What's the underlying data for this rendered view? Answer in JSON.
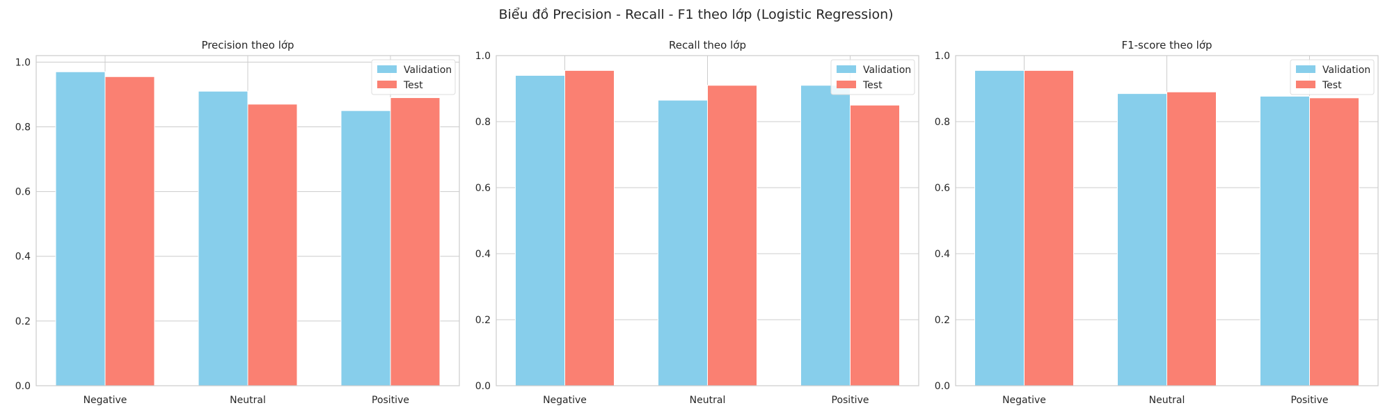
{
  "suptitle": "Biểu đồ Precision - Recall - F1 theo lớp (Logistic Regression)",
  "colors": {
    "validation": "#87ceeb",
    "test": "#fa8072",
    "grid": "#cccccc",
    "axis": "#cccccc"
  },
  "chart_data": [
    {
      "type": "bar",
      "title": "Precision theo lớp",
      "categories": [
        "Negative",
        "Neutral",
        "Positive"
      ],
      "series": [
        {
          "name": "Validation",
          "values": [
            0.97,
            0.91,
            0.85
          ]
        },
        {
          "name": "Test",
          "values": [
            0.955,
            0.87,
            0.89
          ]
        }
      ],
      "ylim": [
        0,
        1.02
      ],
      "yticks": [
        "0.0",
        "0.2",
        "0.4",
        "0.6",
        "0.8",
        "1.0"
      ],
      "legend": "top-right",
      "grid": true
    },
    {
      "type": "bar",
      "title": "Recall theo lớp",
      "categories": [
        "Negative",
        "Neutral",
        "Positive"
      ],
      "series": [
        {
          "name": "Validation",
          "values": [
            0.94,
            0.865,
            0.91
          ]
        },
        {
          "name": "Test",
          "values": [
            0.955,
            0.91,
            0.85
          ]
        }
      ],
      "ylim": [
        0,
        1.0
      ],
      "yticks": [
        "0.0",
        "0.2",
        "0.4",
        "0.6",
        "0.8",
        "1.0"
      ],
      "legend": "top-right",
      "grid": true
    },
    {
      "type": "bar",
      "title": "F1-score theo lớp",
      "categories": [
        "Negative",
        "Neutral",
        "Positive"
      ],
      "series": [
        {
          "name": "Validation",
          "values": [
            0.955,
            0.885,
            0.877
          ]
        },
        {
          "name": "Test",
          "values": [
            0.955,
            0.89,
            0.872
          ]
        }
      ],
      "ylim": [
        0,
        1.0
      ],
      "yticks": [
        "0.0",
        "0.2",
        "0.4",
        "0.6",
        "0.8",
        "1.0"
      ],
      "legend": "top-right",
      "grid": true
    }
  ]
}
